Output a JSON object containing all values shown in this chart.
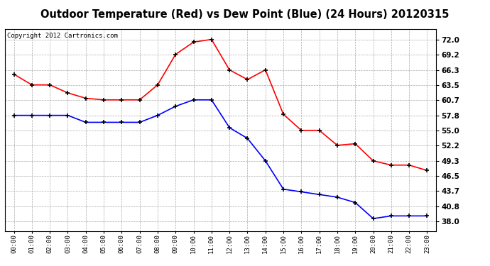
{
  "title": "Outdoor Temperature (Red) vs Dew Point (Blue) (24 Hours) 20120315",
  "copyright": "Copyright 2012 Cartronics.com",
  "hours": [
    "00:00",
    "01:00",
    "02:00",
    "03:00",
    "04:00",
    "05:00",
    "06:00",
    "07:00",
    "08:00",
    "09:00",
    "10:00",
    "11:00",
    "12:00",
    "13:00",
    "14:00",
    "15:00",
    "16:00",
    "17:00",
    "18:00",
    "19:00",
    "20:00",
    "21:00",
    "22:00",
    "23:00"
  ],
  "temp_red": [
    65.5,
    63.5,
    63.5,
    62.0,
    61.0,
    60.7,
    60.7,
    60.7,
    63.5,
    69.2,
    71.5,
    72.0,
    66.3,
    64.5,
    66.3,
    58.0,
    55.0,
    55.0,
    52.2,
    52.5,
    49.3,
    48.5,
    48.5,
    47.5
  ],
  "dew_blue": [
    57.8,
    57.8,
    57.8,
    57.8,
    56.5,
    56.5,
    56.5,
    56.5,
    57.8,
    59.5,
    60.7,
    60.7,
    55.5,
    53.5,
    49.3,
    44.0,
    43.5,
    43.0,
    42.5,
    41.5,
    38.5,
    39.0,
    39.0,
    39.0
  ],
  "ylim_min": 36.1,
  "ylim_max": 73.9,
  "yticks": [
    38.0,
    40.8,
    43.7,
    46.5,
    49.3,
    52.2,
    55.0,
    57.8,
    60.7,
    63.5,
    66.3,
    69.2,
    72.0
  ],
  "temp_color": "#ff0000",
  "dew_color": "#0000ff",
  "bg_color": "#ffffff",
  "plot_bg": "#ffffff",
  "grid_color": "#aaaaaa",
  "title_fontsize": 10.5,
  "copyright_fontsize": 6.5,
  "marker": "+",
  "marker_color": "#000000",
  "marker_size": 5,
  "line_width": 1.2
}
